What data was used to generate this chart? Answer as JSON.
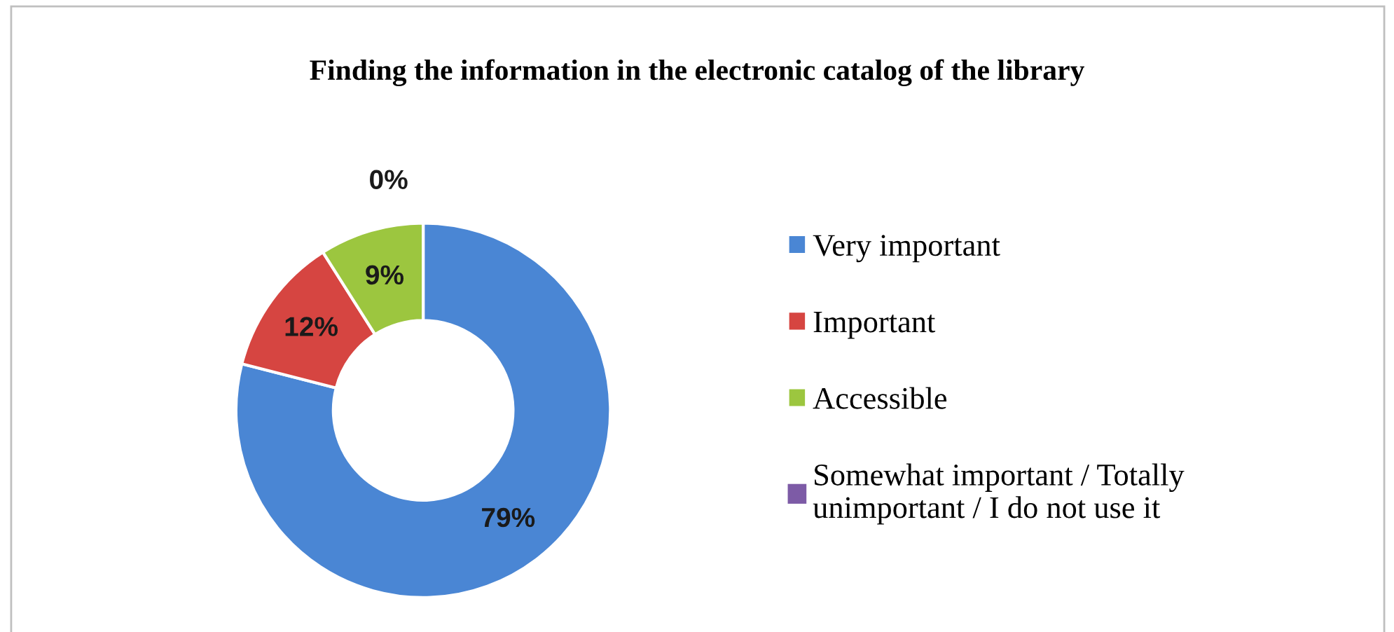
{
  "chart_data": {
    "type": "donut",
    "title": "Finding the information in the electronic catalog of the library",
    "categories": [
      "Very important",
      "Important",
      "Accessible",
      "Somewhat important / Totally\nunimportant / I do not use it"
    ],
    "values": [
      79,
      12,
      9,
      0
    ],
    "colors": [
      "#4a86d4",
      "#d64541",
      "#9cc63f",
      "#7d5ba6"
    ],
    "value_labels": [
      "79%",
      "12%",
      "9%",
      "0%"
    ],
    "legend": "right"
  }
}
